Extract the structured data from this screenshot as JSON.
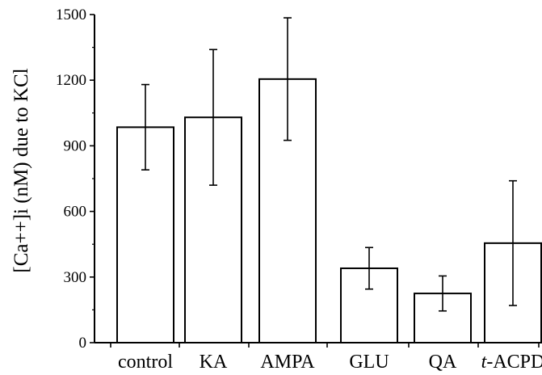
{
  "chart_data": {
    "type": "bar",
    "title": "",
    "xlabel": "",
    "ylabel": "[Ca++]i (nM) due to KCl",
    "ylim": [
      0,
      1500
    ],
    "yticks": [
      0,
      300,
      600,
      900,
      1200,
      1500
    ],
    "categories": [
      "control",
      "KA",
      "AMPA",
      "GLU",
      "QA",
      "t-ACPD"
    ],
    "category_parts": [
      {
        "italic": "",
        "rest": "control"
      },
      {
        "italic": "",
        "rest": "KA"
      },
      {
        "italic": "",
        "rest": "AMPA"
      },
      {
        "italic": "",
        "rest": "GLU"
      },
      {
        "italic": "",
        "rest": "QA"
      },
      {
        "italic": "t",
        "rest": "-ACPD"
      }
    ],
    "values": [
      985,
      1030,
      1205,
      340,
      225,
      455
    ],
    "errors": [
      195,
      310,
      280,
      95,
      80,
      285
    ],
    "grid": false,
    "bar_fill": "#ffffff",
    "bar_stroke": "#000000"
  }
}
